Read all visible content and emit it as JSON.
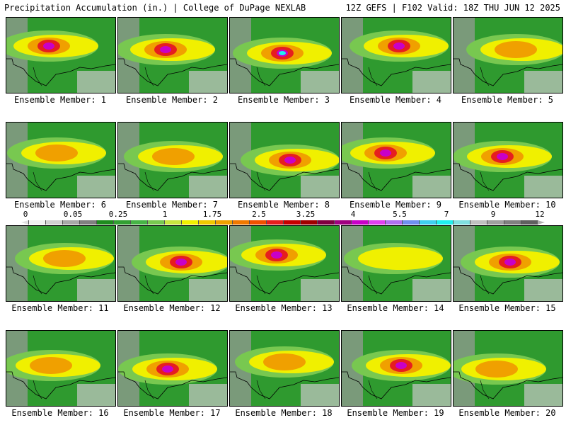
{
  "header": {
    "left": "Precipitation Accumulation (in.) | College of DuPage NEXLAB",
    "right": "12Z GEFS | F102 Valid: 18Z THU JUN 12 2025"
  },
  "panels": [
    {
      "label": "Ensemble Member: 1"
    },
    {
      "label": "Ensemble Member: 2"
    },
    {
      "label": "Ensemble Member: 3"
    },
    {
      "label": "Ensemble Member: 4"
    },
    {
      "label": "Ensemble Member: 5"
    },
    {
      "label": "Ensemble Member: 6"
    },
    {
      "label": "Ensemble Member: 7"
    },
    {
      "label": "Ensemble Member: 8"
    },
    {
      "label": "Ensemble Member: 9"
    },
    {
      "label": "Ensemble Member: 10"
    },
    {
      "label": "Ensemble Member: 11"
    },
    {
      "label": "Ensemble Member: 12"
    },
    {
      "label": "Ensemble Member: 13"
    },
    {
      "label": "Ensemble Member: 14"
    },
    {
      "label": "Ensemble Member: 15"
    },
    {
      "label": "Ensemble Member: 16"
    },
    {
      "label": "Ensemble Member: 17"
    },
    {
      "label": "Ensemble Member: 18"
    },
    {
      "label": "Ensemble Member: 19"
    },
    {
      "label": "Ensemble Member: 20"
    }
  ],
  "colorbar": {
    "labels": [
      "0",
      "0.05",
      "0.25",
      "1",
      "1.75",
      "2.5",
      "3.25",
      "4",
      "5.5",
      "7",
      "9",
      "12"
    ],
    "colors": [
      "#f0f0f0",
      "#d0d0d0",
      "#a8a8a8",
      "#808080",
      "#1e8c1e",
      "#32a032",
      "#46b446",
      "#78c850",
      "#c8e640",
      "#f0f000",
      "#f0c800",
      "#f0a000",
      "#f07800",
      "#f05000",
      "#e61e1e",
      "#c80000",
      "#a00000",
      "#800040",
      "#a00080",
      "#c800c8",
      "#e040f0",
      "#b070f0",
      "#7090f0",
      "#40d0f0",
      "#20f0f0",
      "#80e0e0",
      "#c0c0c0",
      "#a0a0a0",
      "#808080",
      "#606060"
    ]
  }
}
